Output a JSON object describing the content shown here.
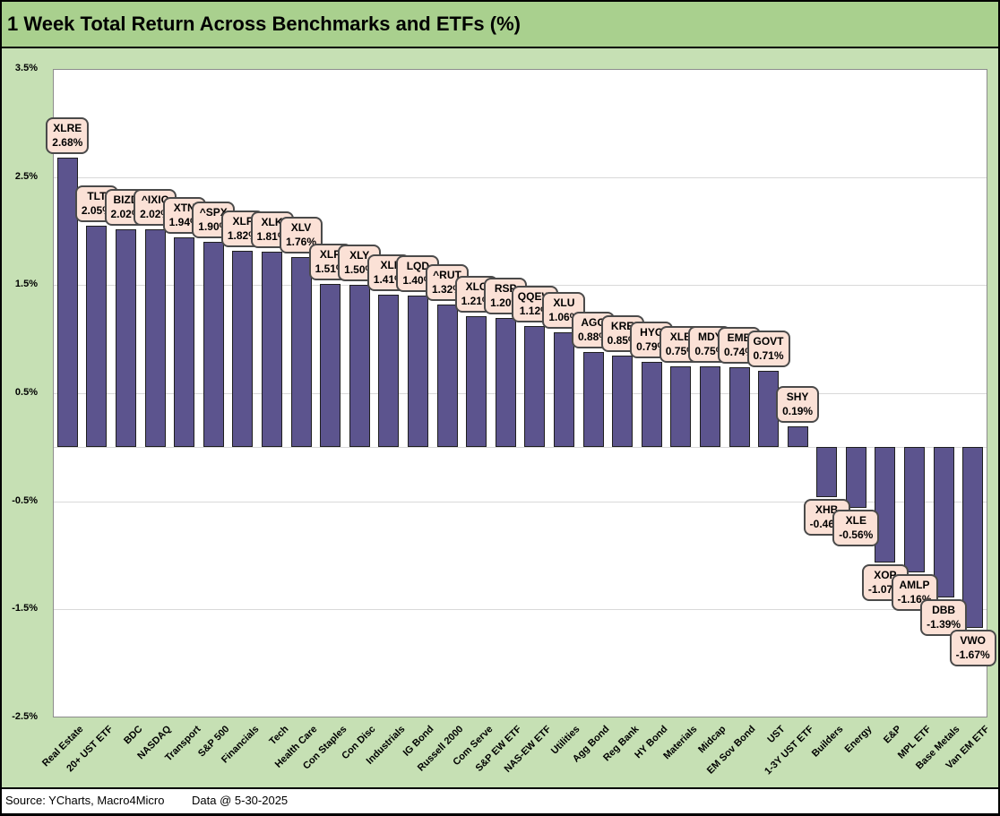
{
  "header": {
    "title": "1 Week Total Return Across Benchmarks and ETFs (%)"
  },
  "footer": {
    "source": "Source: YCharts, Macro4Micro",
    "data_date": "Data @ 5-30-2025"
  },
  "colors": {
    "background": "#c6e0b4",
    "title_bar": "#a9d08e",
    "bar_fill": "#5c548e",
    "bar_border": "#1f1f1f",
    "callout_fill": "#fbe1d6",
    "callout_border": "#4a4a4a",
    "gridline": "#d9d9d9",
    "plot_border": "#8c8c8c"
  },
  "chart_data": {
    "type": "bar",
    "title": "1 Week Total Return Across Benchmarks and ETFs (%)",
    "xlabel": "",
    "ylabel": "",
    "ylim": [
      -2.5,
      3.5
    ],
    "grid": true,
    "legend": false,
    "y_ticks": [
      "3.5%",
      "2.5%",
      "1.5%",
      "0.5%",
      "-0.5%",
      "-1.5%",
      "-2.5%"
    ],
    "points": [
      {
        "category": "Real Estate",
        "ticker": "XLRE",
        "value": 2.68,
        "label": "2.68%"
      },
      {
        "category": "20+ UST ETF",
        "ticker": "TLT",
        "value": 2.05,
        "label": "2.05%"
      },
      {
        "category": "BDC",
        "ticker": "BIZD",
        "value": 2.02,
        "label": "2.02%"
      },
      {
        "category": "NASDAQ",
        "ticker": "^IXIC",
        "value": 2.02,
        "label": "2.02%"
      },
      {
        "category": "Transport",
        "ticker": "XTN",
        "value": 1.94,
        "label": "1.94%"
      },
      {
        "category": "S&P 500",
        "ticker": "^SPX",
        "value": 1.9,
        "label": "1.90%"
      },
      {
        "category": "Financials",
        "ticker": "XLF",
        "value": 1.82,
        "label": "1.82%"
      },
      {
        "category": "Tech",
        "ticker": "XLK",
        "value": 1.81,
        "label": "1.81%"
      },
      {
        "category": "Health Care",
        "ticker": "XLV",
        "value": 1.76,
        "label": "1.76%"
      },
      {
        "category": "Con Staples",
        "ticker": "XLP",
        "value": 1.51,
        "label": "1.51%"
      },
      {
        "category": "Con Disc",
        "ticker": "XLY",
        "value": 1.5,
        "label": "1.50%"
      },
      {
        "category": "Industrials",
        "ticker": "XLI",
        "value": 1.41,
        "label": "1.41%"
      },
      {
        "category": "IG Bond",
        "ticker": "LQD",
        "value": 1.4,
        "label": "1.40%"
      },
      {
        "category": "Russell 2000",
        "ticker": "^RUT",
        "value": 1.32,
        "label": "1.32%"
      },
      {
        "category": "Com Serve",
        "ticker": "XLC",
        "value": 1.21,
        "label": "1.21%"
      },
      {
        "category": "S&P EW ETF",
        "ticker": "RSP",
        "value": 1.2,
        "label": "1.20%"
      },
      {
        "category": "NAS-EW ETF",
        "ticker": "QQEW",
        "value": 1.12,
        "label": "1.12%"
      },
      {
        "category": "Utilities",
        "ticker": "XLU",
        "value": 1.06,
        "label": "1.06%"
      },
      {
        "category": "Agg Bond",
        "ticker": "AGG",
        "value": 0.88,
        "label": "0.88%"
      },
      {
        "category": "Reg Bank",
        "ticker": "KRE",
        "value": 0.85,
        "label": "0.85%"
      },
      {
        "category": "HY Bond",
        "ticker": "HYG",
        "value": 0.79,
        "label": "0.79%"
      },
      {
        "category": "Materials",
        "ticker": "XLB",
        "value": 0.75,
        "label": "0.75%"
      },
      {
        "category": "Midcap",
        "ticker": "MDY",
        "value": 0.75,
        "label": "0.75%"
      },
      {
        "category": "EM Sov Bond",
        "ticker": "EMB",
        "value": 0.74,
        "label": "0.74%"
      },
      {
        "category": "UST",
        "ticker": "GOVT",
        "value": 0.71,
        "label": "0.71%"
      },
      {
        "category": "1-3Y UST ETF",
        "ticker": "SHY",
        "value": 0.19,
        "label": "0.19%"
      },
      {
        "category": "Builders",
        "ticker": "XHB",
        "value": -0.46,
        "label": "-0.46%"
      },
      {
        "category": "Energy",
        "ticker": "XLE",
        "value": -0.56,
        "label": "-0.56%"
      },
      {
        "category": "E&P",
        "ticker": "XOP",
        "value": -1.07,
        "label": "-1.07%"
      },
      {
        "category": "MPL ETF",
        "ticker": "AMLP",
        "value": -1.16,
        "label": "-1.16%"
      },
      {
        "category": "Base Metals",
        "ticker": "DBB",
        "value": -1.39,
        "label": "-1.39%"
      },
      {
        "category": "Van EM ETF",
        "ticker": "VWO",
        "value": -1.67,
        "label": "-1.67%"
      }
    ]
  }
}
